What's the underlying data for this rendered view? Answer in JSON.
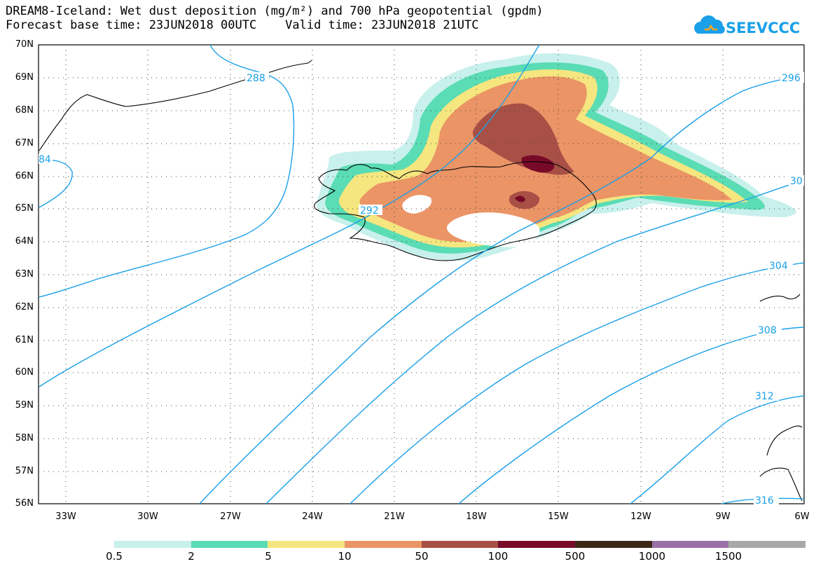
{
  "header": {
    "title_line1": "DREAM8-Iceland: Wet dust deposition (mg/m²) and 700 hPa geopotential (gpdm)",
    "title_line2": "Forecast base time: 23JUN2018 00UTC    Valid time: 23JUN2018 21UTC"
  },
  "logo": {
    "text": "SEEVCCC",
    "icon": "cloud-logo-icon"
  },
  "axes": {
    "lat_labels": [
      "70N",
      "69N",
      "68N",
      "67N",
      "66N",
      "65N",
      "64N",
      "63N",
      "62N",
      "61N",
      "60N",
      "59N",
      "58N",
      "57N",
      "56N"
    ],
    "lon_labels": [
      "33W",
      "30W",
      "27W",
      "24W",
      "21W",
      "18W",
      "15W",
      "12W",
      "9W",
      "6W"
    ]
  },
  "contours": {
    "color": "#1aa0e8",
    "labels": [
      "288",
      "296",
      "84",
      "292",
      "30",
      "304",
      "308",
      "312",
      "316"
    ]
  },
  "colorbar": {
    "colors": [
      "#c8f0ec",
      "#5adcb4",
      "#f5e680",
      "#eb9466",
      "#a85046",
      "#780a28",
      "#3c2814",
      "#9a70a8",
      "#a8a8a8"
    ],
    "labels": [
      "0.5",
      "2",
      "5",
      "10",
      "50",
      "100",
      "500",
      "1000",
      "1500"
    ]
  }
}
